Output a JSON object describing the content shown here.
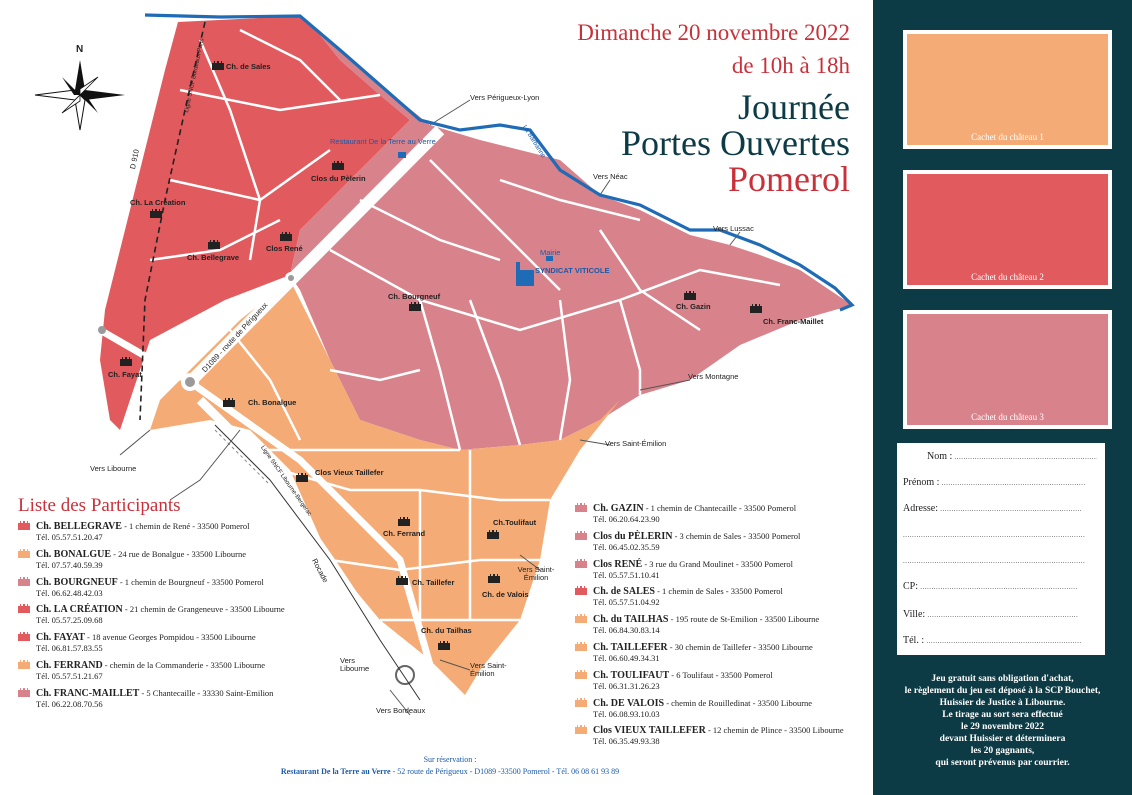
{
  "header": {
    "date": "Dimanche 20 novembre 2022",
    "hours": "de 10h à 18h",
    "title_line1": "Journée",
    "title_line2": "Portes Ouvertes",
    "title_line3": "Pomerol"
  },
  "colors": {
    "red": "#e05a5e",
    "pink": "#d8838b",
    "orange": "#f5ab75",
    "river": "#1f6bb6",
    "panel": "#0c3a45",
    "title_red": "#c9313a",
    "title_dark": "#0c3a45"
  },
  "map": {
    "compass_north": "N",
    "roads": [
      "D 910",
      "D1089 - route de Périgueux",
      "Rocade"
    ],
    "rail_lines": [
      "Ligne SNCF Bordeaux-Paris",
      "Ligne SNCF Libourne-Bergerac"
    ],
    "river": "La Barbanne",
    "directions": [
      "Vers Périgueux-Lyon",
      "Vers Néac",
      "Vers Lussac",
      "Vers Montagne",
      "Vers Saint-Émilion",
      "Vers Saint-Émilion",
      "Vers Saint-Émilion",
      "Vers Libourne",
      "Vers Libourne",
      "Vers Bordeaux"
    ],
    "places": {
      "restaurant": "Restaurant De la Terre au Verre",
      "mairie": "Mairie",
      "syndicat": "SYNDICAT VITICOLE"
    },
    "chateaux": [
      "Ch. de Sales",
      "Ch. La Création",
      "Ch. Bellegrave",
      "Clos René",
      "Clos du Pèlerin",
      "Ch. Bourgneuf",
      "Ch. Gazin",
      "Ch. Franc-Maillet",
      "Ch. Fayat",
      "Ch. Bonalgue",
      "Clos Vieux Taillefer",
      "Ch. Ferrand",
      "Ch.Toulifaut",
      "Ch. Taillefer",
      "Ch. de Valois",
      "Ch. du Tailhas"
    ]
  },
  "legend": {
    "title": "Liste des Participants",
    "left": [
      {
        "name": "Ch. BELLEGRAVE",
        "addr": " - 1 chemin de René - 33500 Pomerol",
        "tel": "Tél. 05.57.51.20.47",
        "zone": "red"
      },
      {
        "name": "Ch. BONALGUE",
        "addr": " - 24 rue de Bonalgue - 33500 Libourne",
        "tel": "Tél. 07.57.40.59.39",
        "zone": "orange"
      },
      {
        "name": "Ch. BOURGNEUF",
        "addr": " - 1 chemin de Bourgneuf - 33500 Pomerol",
        "tel": "Tél. 06.62.48.42.03",
        "zone": "pink"
      },
      {
        "name": "Ch. LA CRÉATION",
        "addr": " - 21 chemin de Grangeneuve - 33500 Libourne",
        "tel": "Tél. 05.57.25.09.68",
        "zone": "red"
      },
      {
        "name": "Ch. FAYAT",
        "addr": " - 18 avenue Georges Pompidou - 33500 Libourne",
        "tel": "Tél. 06.81.57.83.55",
        "zone": "red"
      },
      {
        "name": "Ch. FERRAND",
        "addr": " - chemin de la Commanderie - 33500 Libourne",
        "tel": "Tél. 05.57.51.21.67",
        "zone": "orange"
      },
      {
        "name": "Ch. FRANC-MAILLET",
        "addr": " - 5 Chantecaille - 33330 Saint-Emilion",
        "tel": "Tél. 06.22.08.70.56",
        "zone": "pink"
      }
    ],
    "right": [
      {
        "name": "Ch. GAZIN",
        "addr": " - 1 chemin de Chantecaille - 33500 Pomerol",
        "tel": "Tél. 06.20.64.23.90",
        "zone": "pink"
      },
      {
        "name": "Clos du PÈLERIN",
        "addr": " - 3 chemin de Sales - 33500 Pomerol",
        "tel": "Tél. 06.45.02.35.59",
        "zone": "pink"
      },
      {
        "name": "Clos RENÉ",
        "addr": " - 3 rue du Grand Moulinet - 33500 Pomerol",
        "tel": "Tél. 05.57.51.10.41",
        "zone": "pink"
      },
      {
        "name": "Ch. de SALES",
        "addr": " - 1 chemin de Sales - 33500 Pomerol",
        "tel": "Tél. 05.57.51.04.92",
        "zone": "red"
      },
      {
        "name": "Ch. du TAILHAS",
        "addr": " - 195 route de St-Emilion - 33500 Libourne",
        "tel": "Tél. 06.84.30.83.14",
        "zone": "orange"
      },
      {
        "name": "Ch. TAILLEFER",
        "addr": " - 30 chemin de Taillefer - 33500 Libourne",
        "tel": "Tél. 06.60.49.34.31",
        "zone": "orange"
      },
      {
        "name": "Ch. TOULIFAUT",
        "addr": " - 6 Toulifaut - 33500 Pomerol",
        "tel": "Tél. 06.31.31.26.23",
        "zone": "orange"
      },
      {
        "name": "Ch. DE VALOIS",
        "addr": " - chemin de Rouilledinat - 33500 Libourne",
        "tel": "Tél. 06.08.93.10.03",
        "zone": "orange"
      },
      {
        "name": "Clos VIEUX TAILLEFER",
        "addr": " - 12 chemin de Plince - 33500 Libourne",
        "tel": "Tél. 06.35.49.93.38",
        "zone": "orange"
      }
    ]
  },
  "reservation": {
    "line1": "Sur réservation :",
    "restaurant": "Restaurant De la Terre au Verre",
    "details": " - 52 route de Périgueux - D1089 -33500 Pomerol - Tél. 06 08 61 93 89"
  },
  "panel": {
    "stamps": [
      "Cachet du château 1",
      "Cachet du château 2",
      "Cachet du château 3"
    ],
    "form": {
      "nom": "Nom :",
      "prenom": "Prénom :",
      "adresse": "Adresse:",
      "cp": "CP:",
      "ville": "Ville:",
      "tel": "Tél. :"
    },
    "rules": [
      "Jeu gratuit sans obligation d'achat,",
      "le règlement du jeu est déposé à la SCP Bouchet,",
      "Huissier de Justice à Libourne.",
      "Le tirage au sort sera effectué",
      "le 29 novembre 2022",
      "devant Huissier et déterminera",
      "les 20 gagnants,",
      "qui seront prévenus par courrier."
    ]
  }
}
